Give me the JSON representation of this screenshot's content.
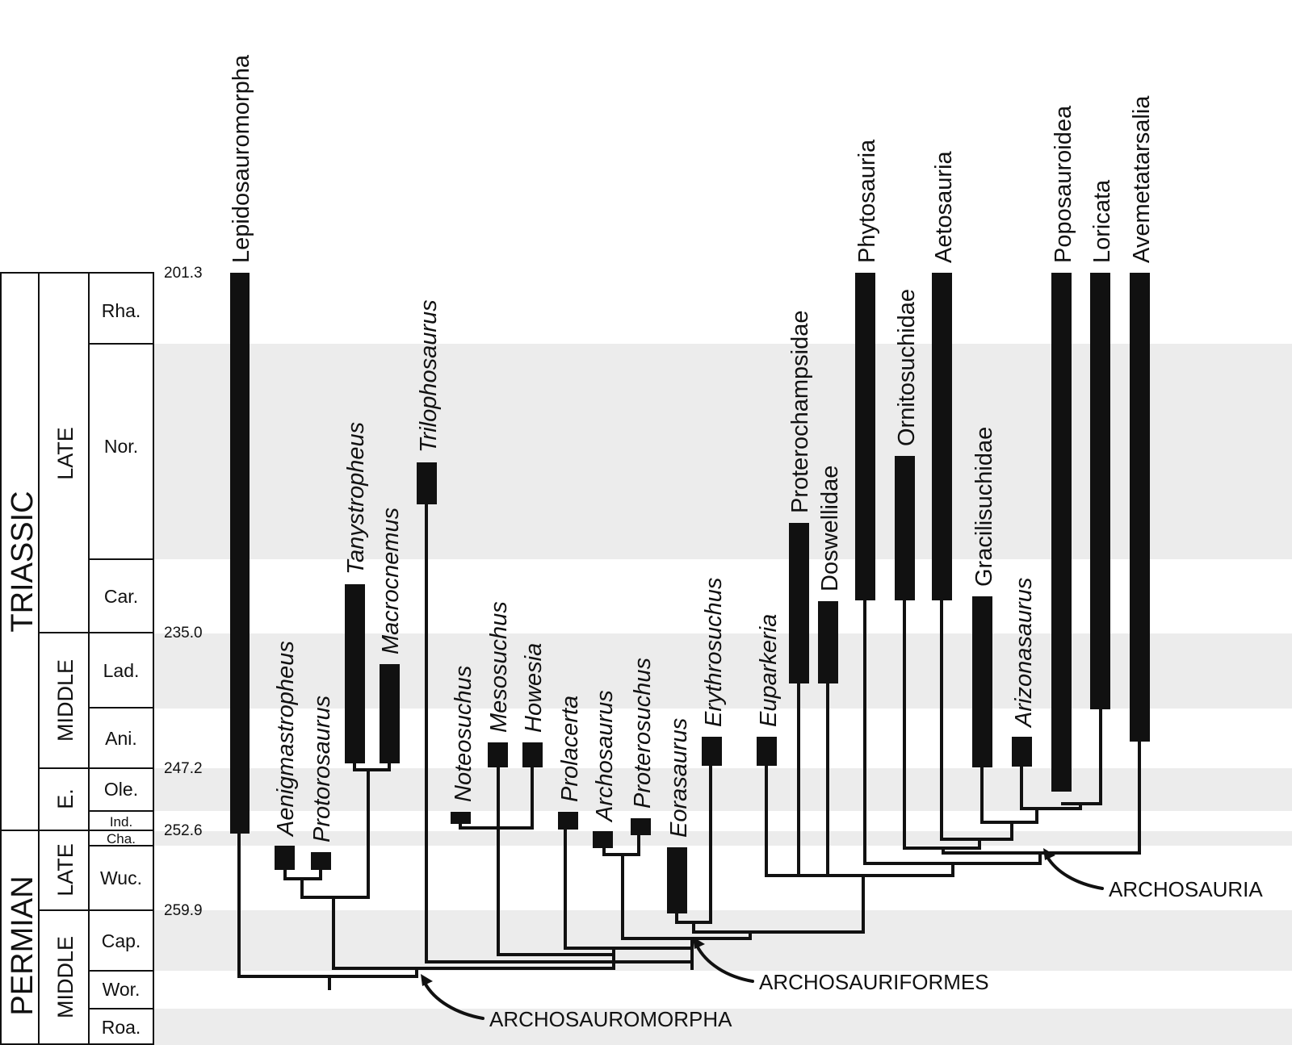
{
  "colors": {
    "ink": "#111111",
    "band": "#ececec",
    "background": "#ffffff"
  },
  "eras": [
    {
      "label": "TRIASSIC"
    },
    {
      "label": "PERMIAN"
    }
  ],
  "epochs": [
    {
      "label": "LATE"
    },
    {
      "label": "MIDDLE"
    },
    {
      "label": "E."
    },
    {
      "label": "LATE"
    },
    {
      "label": "MIDDLE"
    }
  ],
  "stages": [
    {
      "label": "Rha."
    },
    {
      "label": "Nor."
    },
    {
      "label": "Car."
    },
    {
      "label": "Lad."
    },
    {
      "label": "Ani."
    },
    {
      "label": "Ole."
    },
    {
      "label": "Ind."
    },
    {
      "label": "Cha."
    },
    {
      "label": "Wuc."
    },
    {
      "label": "Cap."
    },
    {
      "label": "Wor."
    },
    {
      "label": "Roa."
    }
  ],
  "ages": [
    {
      "label": "201.3"
    },
    {
      "label": "235.0"
    },
    {
      "label": "247.2"
    },
    {
      "label": "252.6"
    },
    {
      "label": "259.9"
    }
  ],
  "taxa": [
    {
      "name": "Lepidosauromorpha",
      "italic": false
    },
    {
      "name": "Aenigmastropheus",
      "italic": true
    },
    {
      "name": "Protorosaurus",
      "italic": true
    },
    {
      "name": "Tanystropheus",
      "italic": true
    },
    {
      "name": "Macrocnemus",
      "italic": true
    },
    {
      "name": "Trilophosaurus",
      "italic": true
    },
    {
      "name": "Noteosuchus",
      "italic": true
    },
    {
      "name": "Mesosuchus",
      "italic": true
    },
    {
      "name": "Howesia",
      "italic": true
    },
    {
      "name": "Prolacerta",
      "italic": true
    },
    {
      "name": "Archosaurus",
      "italic": true
    },
    {
      "name": "Proterosuchus",
      "italic": true
    },
    {
      "name": "Eorasaurus",
      "italic": true
    },
    {
      "name": "Erythrosuchus",
      "italic": true
    },
    {
      "name": "Euparkeria",
      "italic": true
    },
    {
      "name": "Proterochampsidae",
      "italic": false
    },
    {
      "name": "Doswellidae",
      "italic": false
    },
    {
      "name": "Phytosauria",
      "italic": false
    },
    {
      "name": "Ornitosuchidae",
      "italic": false
    },
    {
      "name": "Aetosauria",
      "italic": false
    },
    {
      "name": "Gracilisuchidae",
      "italic": false
    },
    {
      "name": "Arizonasaurus",
      "italic": true
    },
    {
      "name": "Poposauroidea",
      "italic": false
    },
    {
      "name": "Loricata",
      "italic": false
    },
    {
      "name": "Avemetatarsalia",
      "italic": false
    }
  ],
  "clades": [
    {
      "label": "ARCHOSAUROMORPHA"
    },
    {
      "label": "ARCHOSAURIFORMES"
    },
    {
      "label": "ARCHOSAURIA"
    }
  ]
}
